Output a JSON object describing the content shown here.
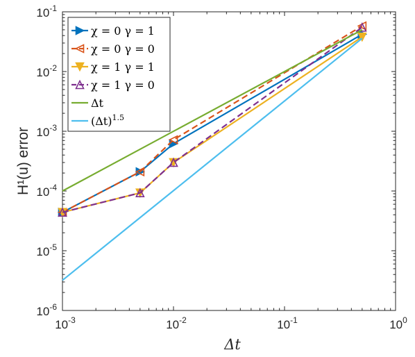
{
  "chart_data": {
    "type": "line",
    "xlabel": "Δt",
    "ylabel": "H¹(u) error",
    "xscale": "log",
    "yscale": "log",
    "xlim": [
      0.001,
      1
    ],
    "ylim": [
      1e-06,
      0.1
    ],
    "grid": false,
    "legend_position": "top-left",
    "x_ticks": [
      0.001,
      0.01,
      0.1,
      1
    ],
    "x_tick_labels": [
      {
        "base": "10",
        "exp": "-3"
      },
      {
        "base": "10",
        "exp": "-2"
      },
      {
        "base": "10",
        "exp": "-1"
      },
      {
        "base": "10",
        "exp": "0"
      }
    ],
    "y_ticks": [
      1e-06,
      1e-05,
      0.0001,
      0.001,
      0.01,
      0.1
    ],
    "y_tick_labels": [
      {
        "base": "10",
        "exp": "-6"
      },
      {
        "base": "10",
        "exp": "-5"
      },
      {
        "base": "10",
        "exp": "-4"
      },
      {
        "base": "10",
        "exp": "-3"
      },
      {
        "base": "10",
        "exp": "-2"
      },
      {
        "base": "10",
        "exp": "-1"
      }
    ],
    "series": [
      {
        "name": "χ = 0 γ = 1",
        "color": "#0072BD",
        "dash": "solid",
        "marker": "triangle-right",
        "x": [
          0.001,
          0.005,
          0.01,
          0.5
        ],
        "y": [
          4.4e-05,
          0.00021,
          0.00062,
          0.042
        ]
      },
      {
        "name": "χ = 0 γ = 0",
        "color": "#D95319",
        "dash": "dashed",
        "marker": "triangle-left",
        "x": [
          0.001,
          0.005,
          0.01,
          0.5
        ],
        "y": [
          4.4e-05,
          0.00021,
          0.00072,
          0.058
        ]
      },
      {
        "name": "χ = 1 γ = 1",
        "color": "#EDB120",
        "dash": "solid",
        "marker": "triangle-down",
        "x": [
          0.001,
          0.005,
          0.01,
          0.5
        ],
        "y": [
          4.4e-05,
          9.3e-05,
          0.0003,
          0.038
        ]
      },
      {
        "name": "χ = 1 γ = 0",
        "color": "#7E2F8E",
        "dash": "dashed",
        "marker": "triangle-up",
        "x": [
          0.001,
          0.005,
          0.01,
          0.5
        ],
        "y": [
          4.4e-05,
          9.3e-05,
          0.0003,
          0.055
        ]
      },
      {
        "name": "Δt",
        "color": "#77AC30",
        "dash": "solid",
        "marker": "none",
        "x": [
          0.001,
          0.5
        ],
        "y": [
          0.0001,
          0.05
        ]
      },
      {
        "name": "(Δt)¹·⁵",
        "color": "#4DBEEE",
        "dash": "solid",
        "marker": "none",
        "x": [
          0.001,
          0.5
        ],
        "y": [
          3.2e-06,
          0.036
        ]
      }
    ],
    "legend_entries": [
      {
        "pre": "χ = 0  γ = 1"
      },
      {
        "pre": "χ = 0  γ = 0"
      },
      {
        "pre": "χ = 1  γ = 1"
      },
      {
        "pre": "χ = 1  γ = 0"
      },
      {
        "pre": "Δt"
      },
      {
        "pre": "(Δt)",
        "sup": "1.5"
      }
    ]
  }
}
